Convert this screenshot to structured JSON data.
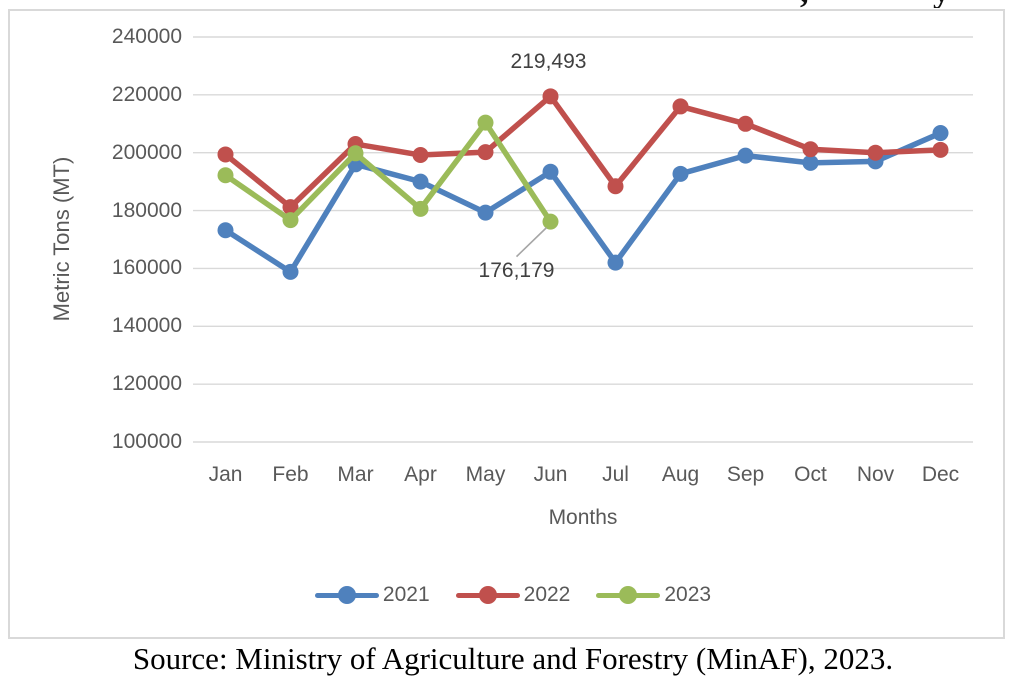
{
  "cropped_title_fragments": [
    ",",
    "y"
  ],
  "source_caption": "Source: Ministry of Agriculture and Forestry (MinAF), 2023.",
  "colors": {
    "grid": "#D9D9D9",
    "frame_border": "#D9D9D9",
    "tick_text": "#595959",
    "data_label_text": "#404040",
    "leader_line": "#A6A6A6"
  },
  "chart_data": {
    "type": "line",
    "title": "",
    "xlabel": "Months",
    "ylabel": "Metric Tons (MT)",
    "categories": [
      "Jan",
      "Feb",
      "Mar",
      "Apr",
      "May",
      "Jun",
      "Jul",
      "Aug",
      "Sep",
      "Oct",
      "Nov",
      "Dec"
    ],
    "ylim": [
      100000,
      240000
    ],
    "ytick_step": 20000,
    "yticks": [
      100000,
      120000,
      140000,
      160000,
      180000,
      200000,
      220000,
      240000
    ],
    "grid": true,
    "legend_position": "bottom",
    "series": [
      {
        "name": "2021",
        "color": "#4F81BD",
        "values": [
          173200,
          158800,
          196000,
          190000,
          179300,
          193400,
          162000,
          192700,
          199000,
          196500,
          197000,
          206800
        ]
      },
      {
        "name": "2022",
        "color": "#C0504D",
        "values": [
          199400,
          181200,
          203000,
          199200,
          200200,
          219493,
          188400,
          216000,
          210000,
          201200,
          200000,
          201000
        ]
      },
      {
        "name": "2023",
        "color": "#9BBB59",
        "values": [
          192200,
          176700,
          199800,
          180600,
          210400,
          176179
        ]
      }
    ],
    "annotations": [
      {
        "text": "219,493",
        "series": "2022",
        "category": "Jun",
        "placement": "above",
        "leader_line": false
      },
      {
        "text": "176,179",
        "series": "2023",
        "category": "Jun",
        "placement": "below-left",
        "leader_line": true
      }
    ]
  }
}
